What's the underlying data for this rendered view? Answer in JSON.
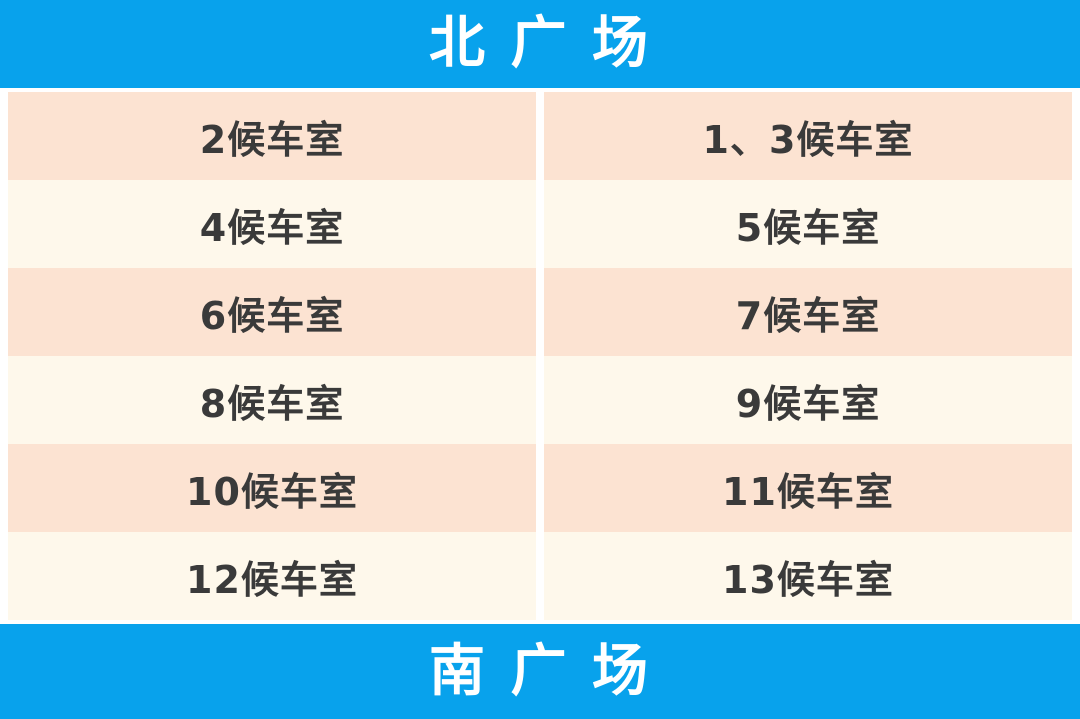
{
  "chart_data": {
    "type": "table",
    "section_headers": {
      "top": "北 广 场",
      "bottom": "南 广 场"
    },
    "columns": 2,
    "rows": [
      [
        "2候车室",
        "1、3候车室"
      ],
      [
        "4候车室",
        "5候车室"
      ],
      [
        "6候车室",
        "7候车室"
      ],
      [
        "8候车室",
        "9候车室"
      ],
      [
        "10候车室",
        "11候车室"
      ],
      [
        "12候车室",
        "13候车室"
      ]
    ]
  },
  "colors": {
    "band_blue": "#08A2EC",
    "row_peach": "#FCE3D2",
    "row_cream": "#FEF8EB",
    "cell_text": "#3A3A3A",
    "band_text": "#FFFFFF",
    "page_background": "#FFFFFF"
  }
}
